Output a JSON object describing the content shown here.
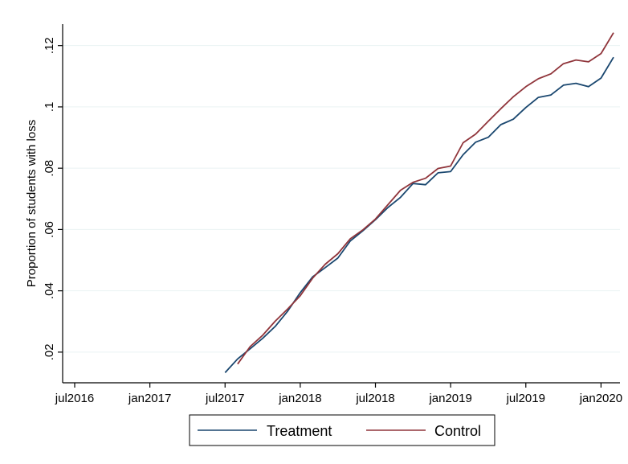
{
  "chart_data": {
    "type": "line",
    "title": "",
    "xlabel": "",
    "ylabel": "Proportion of students with loss",
    "x_tick_labels": [
      "jul2016",
      "jan2017",
      "jul2017",
      "jan2018",
      "jul2018",
      "jan2019",
      "jul2019",
      "jan2020"
    ],
    "x_ticks": [
      "2016-07",
      "2017-01",
      "2017-07",
      "2018-01",
      "2018-07",
      "2019-01",
      "2019-07",
      "2020-01"
    ],
    "xlim": [
      "2016-07",
      "2020-02"
    ],
    "y_tick_labels": [
      ".02",
      ".04",
      ".06",
      ".08",
      ".1",
      ".12"
    ],
    "y_ticks": [
      0.02,
      0.04,
      0.06,
      0.08,
      0.1,
      0.12
    ],
    "ylim": [
      0.01,
      0.127
    ],
    "grid": true,
    "legend_position": "bottom",
    "series": [
      {
        "name": "Treatment",
        "color": "#1a476f",
        "x": [
          "2017-07",
          "2017-08",
          "2017-09",
          "2017-10",
          "2017-11",
          "2017-12",
          "2018-01",
          "2018-02",
          "2018-03",
          "2018-04",
          "2018-05",
          "2018-06",
          "2018-07",
          "2018-08",
          "2018-09",
          "2018-10",
          "2018-11",
          "2018-12",
          "2019-01",
          "2019-02",
          "2019-03",
          "2019-04",
          "2019-05",
          "2019-06",
          "2019-07",
          "2019-08",
          "2019-09",
          "2019-10",
          "2019-11",
          "2019-12",
          "2020-01",
          "2020-02"
        ],
        "y": [
          0.0133,
          0.0178,
          0.0211,
          0.0245,
          0.0284,
          0.0334,
          0.0394,
          0.0446,
          0.0476,
          0.0507,
          0.0563,
          0.0596,
          0.0632,
          0.0672,
          0.0705,
          0.075,
          0.0746,
          0.0785,
          0.0789,
          0.0844,
          0.0885,
          0.0901,
          0.0942,
          0.096,
          0.0998,
          0.1031,
          0.1039,
          0.1071,
          0.1077,
          0.1066,
          0.1094,
          0.1162
        ]
      },
      {
        "name": "Control",
        "color": "#90353b",
        "x": [
          "2017-08",
          "2017-09",
          "2017-10",
          "2017-11",
          "2017-12",
          "2018-01",
          "2018-02",
          "2018-03",
          "2018-04",
          "2018-05",
          "2018-06",
          "2018-07",
          "2018-08",
          "2018-09",
          "2018-10",
          "2018-11",
          "2018-12",
          "2019-01",
          "2019-02",
          "2019-03",
          "2019-04",
          "2019-05",
          "2019-06",
          "2019-07",
          "2019-08",
          "2019-09",
          "2019-10",
          "2019-11",
          "2019-12",
          "2020-01",
          "2020-02"
        ],
        "y": [
          0.0161,
          0.0218,
          0.0255,
          0.0301,
          0.0341,
          0.0384,
          0.0442,
          0.0487,
          0.0521,
          0.057,
          0.0599,
          0.0634,
          0.0681,
          0.0728,
          0.0754,
          0.0767,
          0.0799,
          0.0807,
          0.0883,
          0.0911,
          0.0953,
          0.0994,
          0.1033,
          0.1066,
          0.1092,
          0.1108,
          0.1141,
          0.1153,
          0.1147,
          0.1174,
          0.1242
        ]
      }
    ]
  }
}
